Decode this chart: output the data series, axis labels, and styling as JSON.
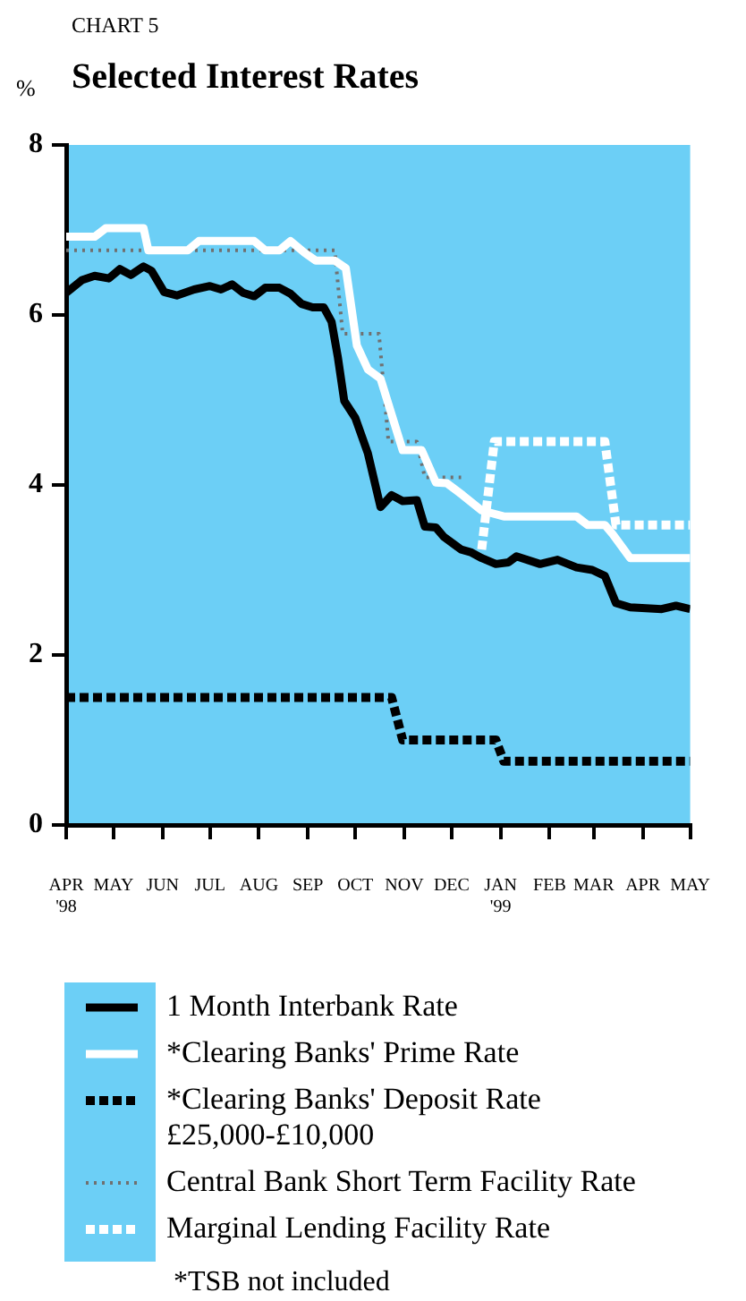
{
  "chart_data": {
    "type": "line",
    "title": "Selected Interest Rates",
    "ylabel": "%",
    "annotations": [
      "CHART 5",
      "*TSB not included"
    ],
    "xlim": [
      "1998-04-01",
      "1999-05-01"
    ],
    "xticks": [
      {
        "value": "1998-04-01",
        "label": "APR '98"
      },
      {
        "value": "1998-05-01",
        "label": "MAY"
      },
      {
        "value": "1998-06-01",
        "label": "JUN"
      },
      {
        "value": "1998-07-01",
        "label": "JUL"
      },
      {
        "value": "1998-08-01",
        "label": "AUG"
      },
      {
        "value": "1998-09-01",
        "label": "SEP"
      },
      {
        "value": "1998-10-01",
        "label": "OCT"
      },
      {
        "value": "1998-11-01",
        "label": "NOV"
      },
      {
        "value": "1998-12-01",
        "label": "DEC"
      },
      {
        "value": "1999-01-01",
        "label": "JAN '99"
      },
      {
        "value": "1999-02-01",
        "label": "FEB"
      },
      {
        "value": "1999-03-01",
        "label": "MAR"
      },
      {
        "value": "1999-04-01",
        "label": "APR"
      },
      {
        "value": "1999-05-01",
        "label": "MAY"
      }
    ],
    "ylim": [
      0,
      8
    ],
    "yticks": [
      0,
      2,
      4,
      6,
      8
    ],
    "legend": "bottom",
    "series": [
      {
        "name": "1 Month Interbank Rate",
        "color": "#000000",
        "line_style": "solid",
        "x": [
          "1998-04-01",
          "1998-04-11",
          "1998-04-19",
          "1998-04-28",
          "1998-05-05",
          "1998-05-12",
          "1998-05-20",
          "1998-05-25",
          "1998-06-02",
          "1998-06-10",
          "1998-06-21",
          "1998-07-01",
          "1998-07-08",
          "1998-07-15",
          "1998-07-22",
          "1998-07-29",
          "1998-08-05",
          "1998-08-14",
          "1998-08-21",
          "1998-08-28",
          "1998-09-04",
          "1998-09-11",
          "1998-09-16",
          "1998-09-20",
          "1998-09-24",
          "1998-10-01",
          "1998-10-09",
          "1998-10-17",
          "1998-10-24",
          "1998-10-31",
          "1998-11-09",
          "1998-11-14",
          "1998-11-21",
          "1998-11-26",
          "1998-12-07",
          "1998-12-13",
          "1998-12-20",
          "1998-12-29",
          "1999-01-06",
          "1999-01-11",
          "1999-01-26",
          "1999-02-06",
          "1999-02-18",
          "1999-02-28",
          "1999-03-08",
          "1999-03-15",
          "1999-03-24",
          "1999-04-13",
          "1999-04-22",
          "1999-05-01"
        ],
        "values": [
          6.26,
          6.41,
          6.46,
          6.43,
          6.54,
          6.47,
          6.57,
          6.52,
          6.27,
          6.23,
          6.3,
          6.34,
          6.3,
          6.36,
          6.26,
          6.22,
          6.32,
          6.32,
          6.25,
          6.13,
          6.09,
          6.09,
          5.92,
          5.5,
          4.99,
          4.79,
          4.37,
          3.74,
          3.88,
          3.81,
          3.82,
          3.51,
          3.5,
          3.39,
          3.24,
          3.21,
          3.14,
          3.07,
          3.09,
          3.16,
          3.07,
          3.12,
          3.03,
          3.0,
          2.93,
          2.61,
          2.56,
          2.54,
          2.58,
          2.54
        ]
      },
      {
        "name": "*Clearing Banks' Prime Rate",
        "color": "#ffffff",
        "line_style": "solid",
        "x": [
          "1998-04-01",
          "1998-04-19",
          "1998-04-26",
          "1998-05-20",
          "1998-05-23",
          "1998-06-17",
          "1998-06-24",
          "1998-07-29",
          "1998-08-05",
          "1998-08-14",
          "1998-08-21",
          "1998-08-30",
          "1998-09-06",
          "1998-09-18",
          "1998-09-25",
          "1998-10-02",
          "1998-10-09",
          "1998-10-17",
          "1998-10-31",
          "1998-11-12",
          "1998-11-21",
          "1998-11-28",
          "1998-12-08",
          "1998-12-20",
          "1999-01-03",
          "1999-02-18",
          "1999-02-25",
          "1999-03-08",
          "1999-03-13",
          "1999-03-24",
          "1999-05-01"
        ],
        "values": [
          6.92,
          6.92,
          7.02,
          7.02,
          6.76,
          6.76,
          6.87,
          6.87,
          6.76,
          6.76,
          6.87,
          6.73,
          6.64,
          6.64,
          6.55,
          5.64,
          5.36,
          5.25,
          4.41,
          4.41,
          4.03,
          4.02,
          3.88,
          3.7,
          3.63,
          3.63,
          3.53,
          3.53,
          3.42,
          3.14,
          3.14
        ]
      },
      {
        "name": "*Clearing Banks' Deposit Rate £25,000-£10,000",
        "color": "#000000",
        "line_style": "dashed",
        "x": [
          "1998-04-01",
          "1998-10-24",
          "1998-10-31",
          "1998-12-29",
          "1999-01-03",
          "1999-05-01"
        ],
        "values": [
          1.5,
          1.5,
          1.0,
          1.0,
          0.75,
          0.75
        ]
      },
      {
        "name": "Central Bank Short Term Facility Rate",
        "color": "#707070",
        "line_style": "dotted",
        "x": [
          "1998-04-01",
          "1998-09-18",
          "1998-09-23",
          "1998-10-16",
          "1998-10-22",
          "1998-11-09",
          "1998-11-14",
          "1998-12-07"
        ],
        "values": [
          6.76,
          6.76,
          5.78,
          5.78,
          4.51,
          4.51,
          4.09,
          4.09
        ]
      },
      {
        "name": "Marginal Lending Facility Rate",
        "color": "#ffffff",
        "line_style": "dashed",
        "x": [
          "1998-12-20",
          "1998-12-28",
          "1999-03-08",
          "1999-03-15",
          "1999-05-01"
        ],
        "values": [
          3.24,
          4.51,
          4.51,
          3.53,
          3.53
        ]
      }
    ]
  }
}
